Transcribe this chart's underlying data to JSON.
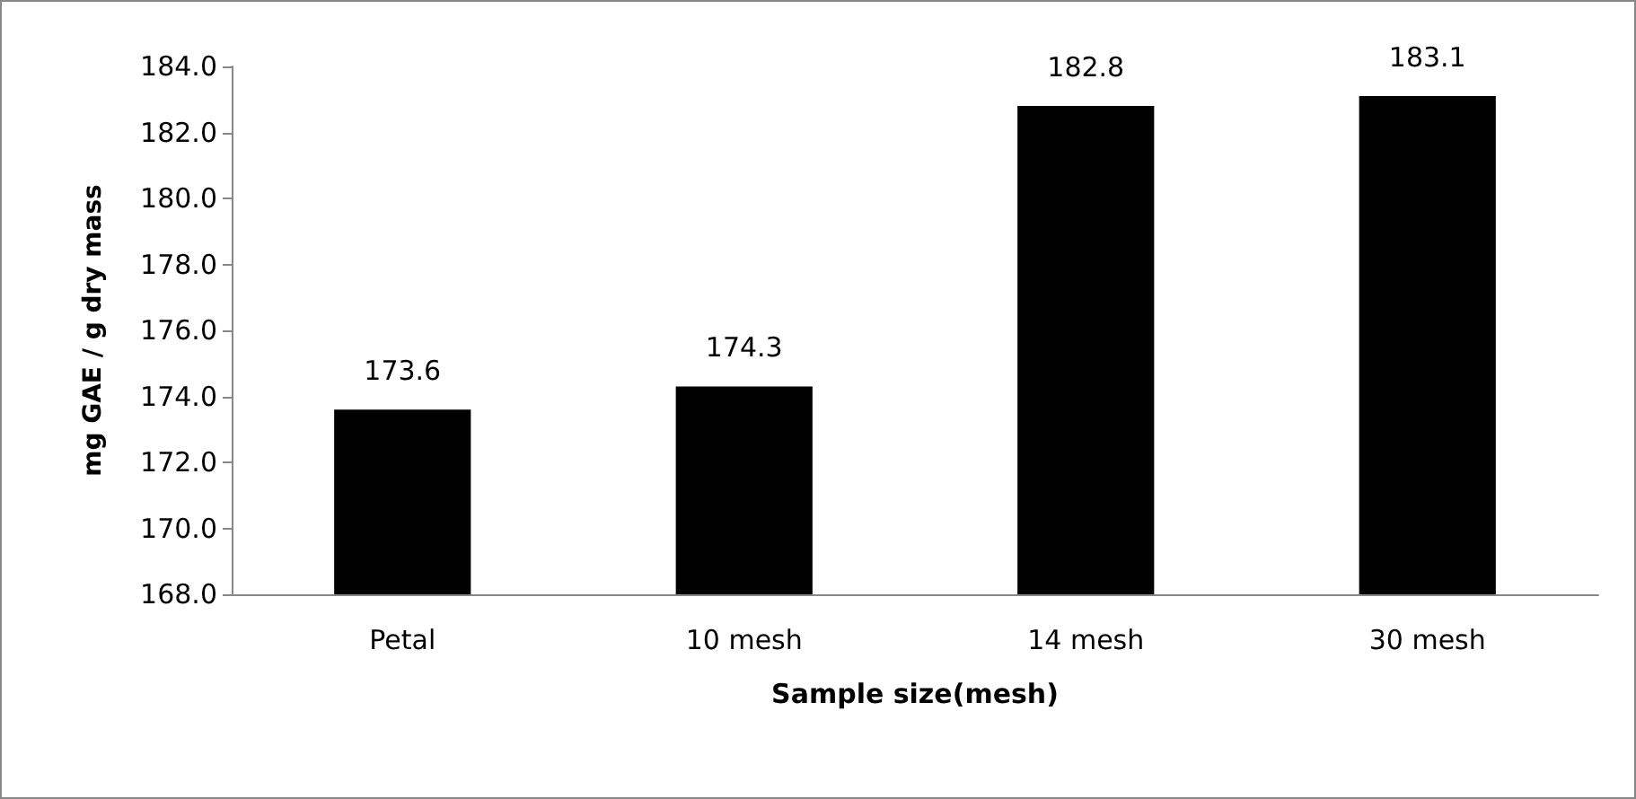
{
  "chart_data": {
    "type": "bar",
    "xlabel": "Sample size(mesh)",
    "ylabel": "mg GAE / g dry mass",
    "categories": [
      "Petal",
      "10 mesh",
      "14 mesh",
      "30 mesh"
    ],
    "values": [
      173.6,
      174.3,
      182.8,
      183.1
    ],
    "color": "#000000",
    "ylim": [
      168,
      184
    ],
    "yticks": [
      {
        "value": 168,
        "label": "168.0"
      },
      {
        "value": 170,
        "label": "170.0"
      },
      {
        "value": 172,
        "label": "172.0"
      },
      {
        "value": 174,
        "label": "174.0"
      },
      {
        "value": 176,
        "label": "176.0"
      },
      {
        "value": 178,
        "label": "178.0"
      },
      {
        "value": 180,
        "label": "180.0"
      },
      {
        "value": 182,
        "label": "182.0"
      },
      {
        "value": 184,
        "label": "184.0"
      }
    ],
    "data_labels": true,
    "grid": false
  }
}
